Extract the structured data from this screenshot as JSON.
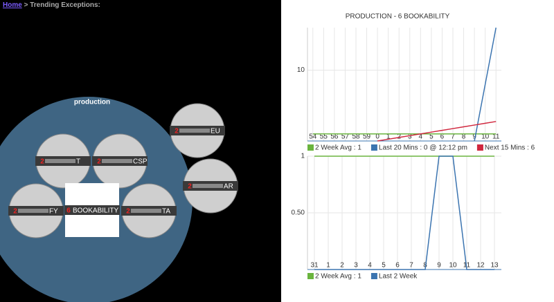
{
  "breadcrumb": {
    "link": "Home",
    "trail": "> Trending Exceptions:"
  },
  "bubbles": {
    "group": "production",
    "nodes": [
      {
        "count": 2,
        "name": "T"
      },
      {
        "count": 2,
        "name": "CSP"
      },
      {
        "count": 2,
        "name": "FY"
      },
      {
        "count": 6,
        "name": "BOOKABILITY"
      },
      {
        "count": 2,
        "name": "TA"
      }
    ],
    "outside": [
      {
        "count": 2,
        "name": "EU"
      },
      {
        "count": 2,
        "name": "AR"
      }
    ]
  },
  "chart_data": [
    {
      "type": "line",
      "title": "PRODUCTION - 6 BOOKABILITY",
      "categories": [
        "54",
        "55",
        "56",
        "57",
        "58",
        "59",
        "0",
        "1",
        "2",
        "3",
        "4",
        "5",
        "6",
        "7",
        "8",
        "9",
        "10",
        "11"
      ],
      "series": [
        {
          "name": "2 Week Avg : 1",
          "color": "#6ab43e",
          "values": [
            1,
            1,
            1,
            1,
            1,
            1,
            1,
            1,
            1,
            1,
            1,
            1,
            1,
            1,
            1,
            1,
            1,
            1
          ]
        },
        {
          "name": "Last 20 Mins : 0 @ 12:12 pm",
          "color": "#3b74b0",
          "values": [
            null,
            null,
            null,
            null,
            null,
            null,
            null,
            null,
            null,
            null,
            null,
            null,
            null,
            null,
            null,
            0,
            8,
            16
          ]
        },
        {
          "name": "Next 15 Mins : 6",
          "color": "#d0273e",
          "values": [
            null,
            null,
            null,
            null,
            null,
            null,
            0,
            0.25,
            0.5,
            0.75,
            1,
            1.25,
            1.5,
            1.75,
            2,
            2.25,
            2.5,
            2.75
          ]
        }
      ],
      "ylim": [
        0,
        16
      ],
      "yticks": [
        10
      ],
      "grid": true
    },
    {
      "type": "line",
      "categories": [
        "31",
        "1",
        "2",
        "3",
        "4",
        "5",
        "6",
        "7",
        "8",
        "9",
        "10",
        "11",
        "12",
        "13"
      ],
      "series": [
        {
          "name": "2 Week Avg : 1",
          "color": "#6ab43e",
          "values": [
            1,
            1,
            1,
            1,
            1,
            1,
            1,
            1,
            1,
            1,
            1,
            1,
            1,
            1
          ]
        },
        {
          "name": "Last 2 Week",
          "color": "#3b74b0",
          "values": [
            0,
            0,
            0,
            0,
            0,
            0,
            0,
            0,
            0,
            1,
            1,
            0,
            0,
            0
          ]
        }
      ],
      "ylim": [
        0,
        1
      ],
      "yticks": [
        {
          "value": 0.5,
          "label": "0.50"
        },
        1
      ],
      "grid": true
    }
  ]
}
